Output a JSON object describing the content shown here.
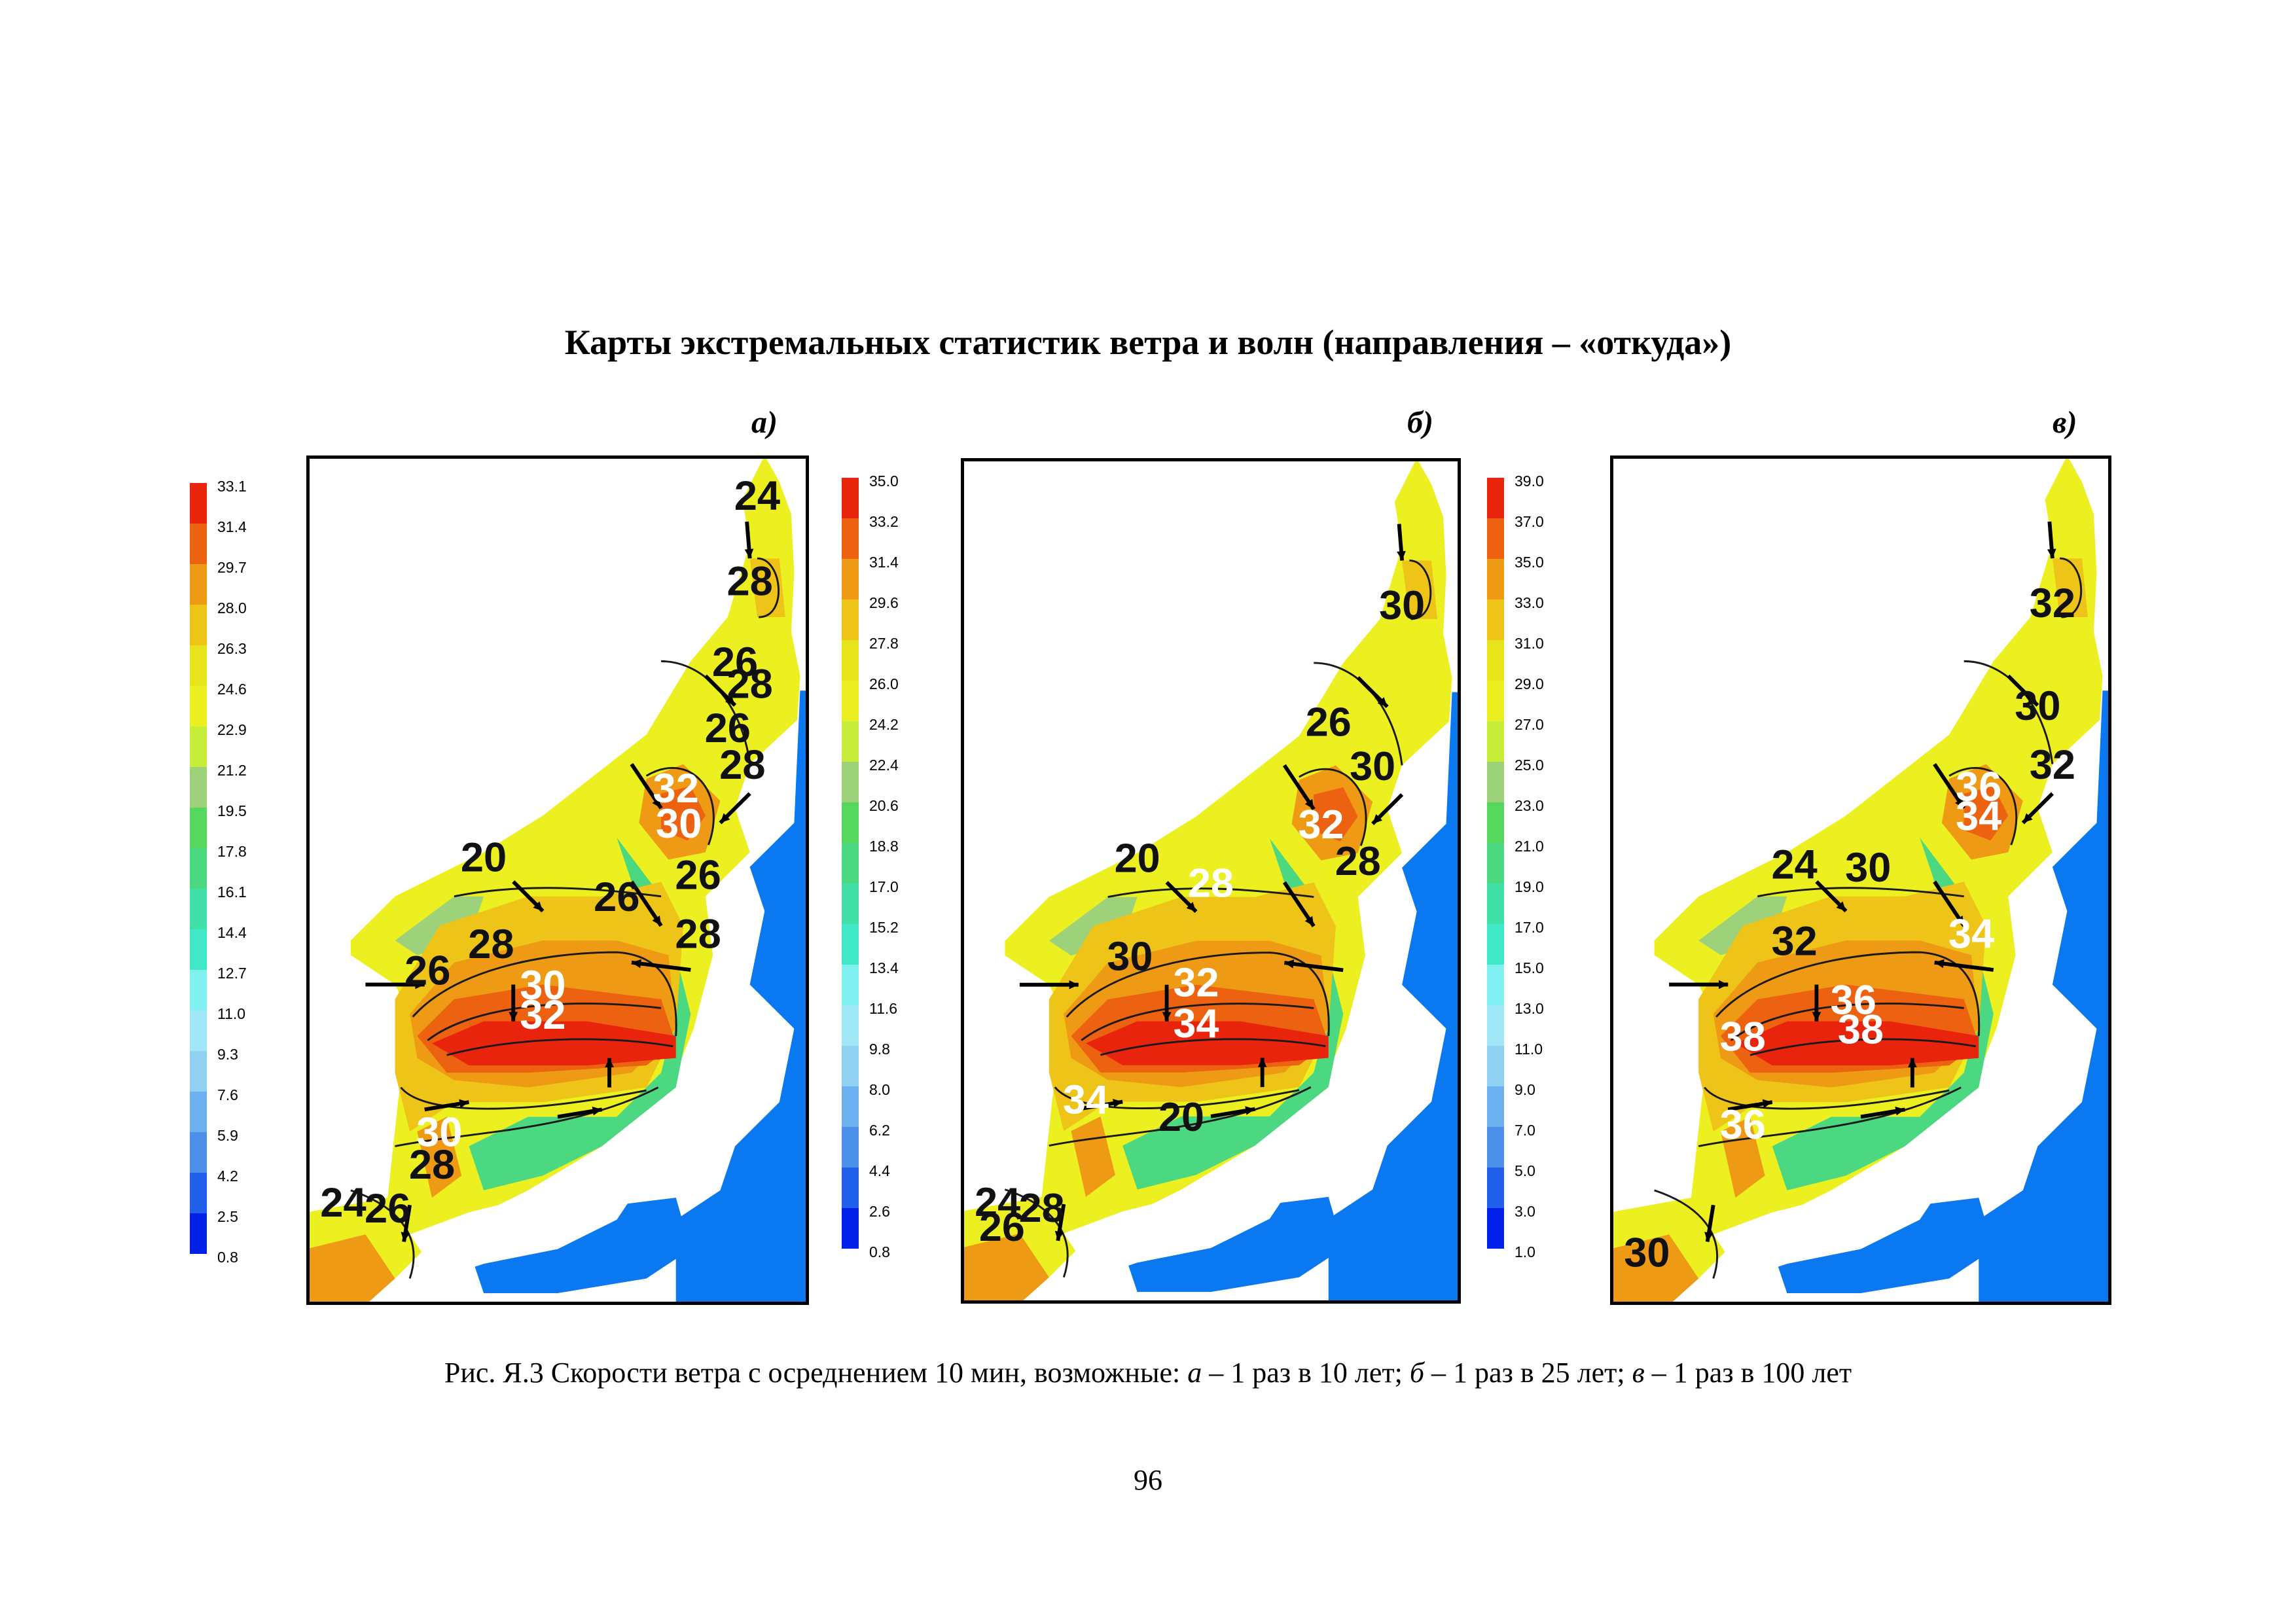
{
  "page": {
    "title": "Карты экстремальных статистик ветра и волн (направления – «откуда»)",
    "caption": {
      "prefix": "Рис. Я.3 Скорости ветра с осреднением 10 мин, возможные: ",
      "a_letter": "а",
      "a_text": " – 1 раз в 10 лет; ",
      "b_letter": "б",
      "b_text": " – 1 раз в 25 лет; ",
      "c_letter": "в",
      "c_text": " – 1 раз в 100 лет"
    },
    "page_number": "96"
  },
  "colors": [
    "#e8240c",
    "#ec6210",
    "#ee9a14",
    "#eec418",
    "#e8e41c",
    "#ecf020",
    "#c8ec3a",
    "#9ed27a",
    "#56d85e",
    "#4cd880",
    "#40e0a8",
    "#40e8c8",
    "#80f0f0",
    "#a0e8f8",
    "#90d0f0",
    "#6cb0f0",
    "#4c90ea",
    "#2060e8",
    "#0020e8"
  ],
  "sea_color": "#0a78f0",
  "maps": [
    {
      "letter": "а)",
      "legend_ticks": [
        "33.1",
        "31.4",
        "29.7",
        "28.0",
        "26.3",
        "24.6",
        "22.9",
        "21.2",
        "19.5",
        "17.8",
        "16.1",
        "14.4",
        "12.7",
        "11.0",
        "9.3",
        "7.6",
        "5.9",
        "4.2",
        "2.5",
        "0.8"
      ],
      "contour_labels": [
        {
          "text": "24",
          "white": false
        },
        {
          "text": "28",
          "white": false
        },
        {
          "text": "26",
          "white": false
        },
        {
          "text": "28",
          "white": false
        },
        {
          "text": "26",
          "white": false
        },
        {
          "text": "28",
          "white": false
        },
        {
          "text": "32",
          "white": true
        },
        {
          "text": "30",
          "white": true
        },
        {
          "text": "20",
          "white": false
        },
        {
          "text": "26",
          "white": false
        },
        {
          "text": "26",
          "white": false
        },
        {
          "text": "28",
          "white": false
        },
        {
          "text": "28",
          "white": false
        },
        {
          "text": "26",
          "white": false
        },
        {
          "text": "30",
          "white": true
        },
        {
          "text": "32",
          "white": true
        },
        {
          "text": "30",
          "white": true
        },
        {
          "text": "28",
          "white": false
        },
        {
          "text": "24",
          "white": false
        },
        {
          "text": "26",
          "white": false
        }
      ]
    },
    {
      "letter": "б)",
      "legend_ticks": [
        "35.0",
        "33.2",
        "31.4",
        "29.6",
        "27.8",
        "26.0",
        "24.2",
        "22.4",
        "20.6",
        "18.8",
        "17.0",
        "15.2",
        "13.4",
        "11.6",
        "9.8",
        "8.0",
        "6.2",
        "4.4",
        "2.6",
        "0.8"
      ],
      "contour_labels": [
        {
          "text": "30",
          "white": false
        },
        {
          "text": "26",
          "white": false
        },
        {
          "text": "30",
          "white": false
        },
        {
          "text": "32",
          "white": true
        },
        {
          "text": "20",
          "white": false
        },
        {
          "text": "28",
          "white": true
        },
        {
          "text": "28",
          "white": false
        },
        {
          "text": "30",
          "white": false
        },
        {
          "text": "32",
          "white": true
        },
        {
          "text": "34",
          "white": true
        },
        {
          "text": "34",
          "white": true
        },
        {
          "text": "20",
          "white": false
        },
        {
          "text": "24",
          "white": false
        },
        {
          "text": "28",
          "white": false
        },
        {
          "text": "26",
          "white": false
        }
      ]
    },
    {
      "letter": "в)",
      "legend_ticks": [
        "39.0",
        "37.0",
        "35.0",
        "33.0",
        "31.0",
        "29.0",
        "27.0",
        "25.0",
        "23.0",
        "21.0",
        "19.0",
        "17.0",
        "15.0",
        "13.0",
        "11.0",
        "9.0",
        "7.0",
        "5.0",
        "3.0",
        "1.0"
      ],
      "contour_labels": [
        {
          "text": "32",
          "white": false
        },
        {
          "text": "30",
          "white": false
        },
        {
          "text": "32",
          "white": false
        },
        {
          "text": "36",
          "white": true
        },
        {
          "text": "34",
          "white": true
        },
        {
          "text": "24",
          "white": false
        },
        {
          "text": "30",
          "white": false
        },
        {
          "text": "32",
          "white": false
        },
        {
          "text": "34",
          "white": true
        },
        {
          "text": "36",
          "white": true
        },
        {
          "text": "38",
          "white": true
        },
        {
          "text": "38",
          "white": true
        },
        {
          "text": "36",
          "white": true
        },
        {
          "text": "30",
          "white": false
        }
      ]
    }
  ]
}
